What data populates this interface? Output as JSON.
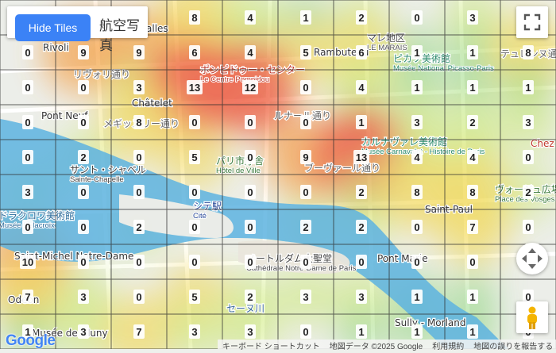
{
  "controls": {
    "hide_tiles_label": "Hide Tiles",
    "map_type_label": "航空写真",
    "attribution": {
      "shortcuts": "キーボード ショートカット",
      "map_data": "地図データ ©2025 Google",
      "terms": "利用規約",
      "report": "地図の誤りを報告する"
    },
    "google_logo": "Google"
  },
  "places": [
    {
      "text": "ポンピドゥー・センター",
      "sub": "Le Centre Pompidou",
      "color": "#c0392b"
    },
    {
      "text": "パリ市庁舎",
      "sub": "Hôtel de Ville",
      "color": "#3a7a3a"
    },
    {
      "text": "ピカソ美術館",
      "sub": "Musée National Picasso-Paris",
      "color": "#2a8a6a"
    },
    {
      "text": "カルナヴァレ美術館",
      "sub": "Musée Carnavalet - Histoire de Paris",
      "color": "#2a8a6a"
    },
    {
      "text": "シテ駅",
      "sub": "Cité",
      "color": "#2b4a9a"
    },
    {
      "text": "ノートルダム大聖堂",
      "sub": "Cathédrale Notre-Dame de Paris",
      "color": "#444"
    },
    {
      "text": "サント・シャペル",
      "sub": "Sainte-Chapelle",
      "color": "#444"
    },
    {
      "text": "ドラクロワ美術館",
      "sub": "Musée Delacroix",
      "color": "#2a6a9a"
    },
    {
      "text": "マレ地区",
      "sub": "LE MARAIS",
      "color": "#555"
    },
    {
      "text": "ヴォージュ広場",
      "sub": "Place des Vosges",
      "color": "#3a7a3a"
    },
    {
      "text": "Pont Neuf",
      "sub": "",
      "color": "#333"
    },
    {
      "text": "Châtelet",
      "sub": "",
      "color": "#333"
    },
    {
      "text": "Rambuteau",
      "sub": "",
      "color": "#333"
    },
    {
      "text": "Saint-Michel Notre-Dame",
      "sub": "",
      "color": "#333"
    },
    {
      "text": "Pont Marie",
      "sub": "",
      "color": "#333"
    },
    {
      "text": "Saint-Paul",
      "sub": "",
      "color": "#333"
    },
    {
      "text": "Sully - Morland",
      "sub": "",
      "color": "#333"
    },
    {
      "text": "Musée de Cluny",
      "sub": "",
      "color": "#333"
    },
    {
      "text": "Halles",
      "sub": "",
      "color": "#333"
    },
    {
      "text": "Odéon",
      "sub": "",
      "color": "#333"
    },
    {
      "text": "Chez",
      "sub": "",
      "color": "#c0392b"
    },
    {
      "text": "リヴォリ通り",
      "sub": "",
      "color": "#666"
    },
    {
      "text": "セーヌ川",
      "sub": "",
      "color": "#3a6a9a"
    },
    {
      "text": "ルナール通り",
      "sub": "",
      "color": "#666"
    },
    {
      "text": "ブーヴァール通り",
      "sub": "",
      "color": "#666"
    },
    {
      "text": "テュレンヌ通り",
      "sub": "",
      "color": "#666"
    },
    {
      "text": "メギッスリー通り",
      "sub": "",
      "color": "#666"
    },
    {
      "text": "Rivoli",
      "sub": "",
      "color": "#333"
    }
  ],
  "grid": {
    "cols": 10,
    "rows": 10,
    "counts": [
      [
        null,
        null,
        null,
        8,
        4,
        1,
        2,
        0,
        3,
        null
      ],
      [
        0,
        9,
        9,
        6,
        4,
        5,
        6,
        1,
        1,
        8
      ],
      [
        0,
        0,
        3,
        13,
        12,
        0,
        4,
        1,
        1,
        1
      ],
      [
        0,
        0,
        8,
        0,
        0,
        0,
        1,
        3,
        2,
        3
      ],
      [
        0,
        2,
        0,
        5,
        0,
        9,
        13,
        4,
        4,
        0
      ],
      [
        3,
        0,
        0,
        0,
        0,
        0,
        2,
        8,
        8,
        2
      ],
      [
        0,
        0,
        2,
        0,
        0,
        2,
        2,
        0,
        7,
        0
      ],
      [
        10,
        0,
        0,
        0,
        0,
        0,
        0,
        0,
        0,
        null
      ],
      [
        7,
        3,
        0,
        5,
        2,
        3,
        3,
        1,
        1,
        0
      ],
      [
        1,
        3,
        7,
        3,
        3,
        0,
        1,
        1,
        1,
        0
      ]
    ],
    "max": 13
  },
  "heat_colors": [
    "#7fd06a",
    "#c8e86a",
    "#f2d64a",
    "#f59a3a",
    "#ec4a2e"
  ]
}
